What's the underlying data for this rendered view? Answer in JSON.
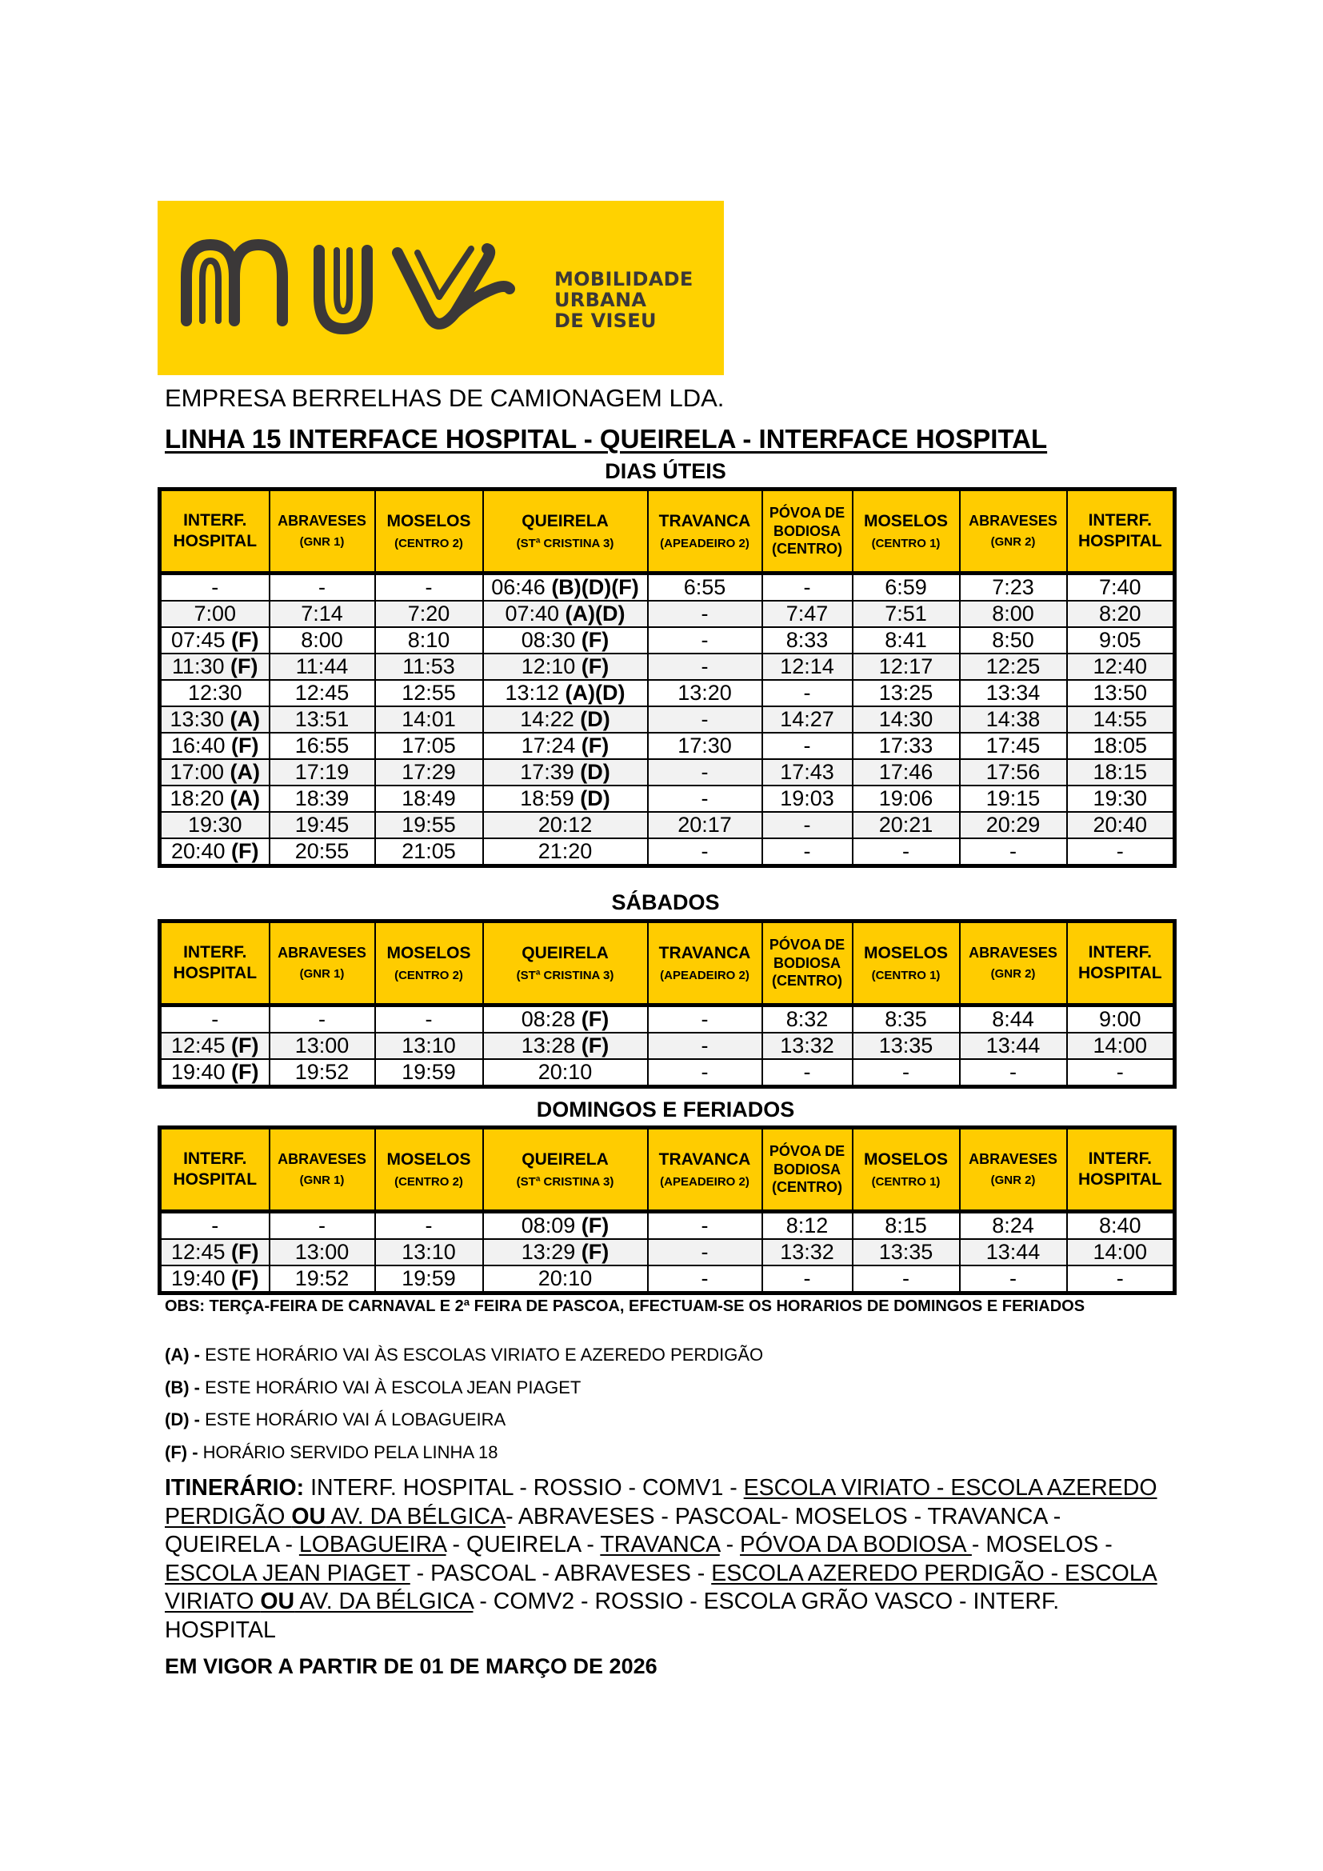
{
  "logo": {
    "brand": "MUV",
    "lines": [
      "MOBILIDADE",
      "URBANA",
      "DE VISEU"
    ],
    "colors": {
      "background": "#FFD200",
      "mark": "#3b3838"
    }
  },
  "company": "EMPRESA BERRELHAS DE CAMIONAGEM LDA.",
  "title": "LINHA  15 INTERFACE HOSPITAL - QUEIRELA - INTERFACE HOSPITAL",
  "colors": {
    "header_fill": "#FFCC00",
    "alt_row": "#f2f2f2"
  },
  "headers": [
    {
      "main": "INTERF. HOSPITAL",
      "sub": "",
      "bold": true
    },
    {
      "main": "ABRAVESES",
      "sub": "(GNR 1)",
      "bold": false,
      "small": true
    },
    {
      "main": "MOSELOS",
      "sub": "(CENTRO 2)",
      "bold": false
    },
    {
      "main": "QUEIRELA",
      "sub": "(STª CRISTINA 3)",
      "bold": true
    },
    {
      "main": "TRAVANCA",
      "sub": "(APEADEIRO 2)",
      "bold": false
    },
    {
      "main": "PÓVOA DE BODIOSA (CENTRO)",
      "sub": "",
      "bold": false,
      "small": true
    },
    {
      "main": "MOSELOS",
      "sub": "(CENTRO 1)",
      "bold": false
    },
    {
      "main": "ABRAVESES",
      "sub": "(GNR 2)",
      "bold": false,
      "small": true
    },
    {
      "main": "INTERF. HOSPITAL",
      "sub": "",
      "bold": true
    }
  ],
  "tables": [
    {
      "section": "DIAS ÚTEIS",
      "rows": [
        [
          "-",
          "-",
          "-",
          "06:46 (B)(D)(F)",
          "6:55",
          "-",
          "6:59",
          "7:23",
          "7:40"
        ],
        [
          "7:00",
          "7:14",
          "7:20",
          "07:40 (A)(D)",
          "-",
          "7:47",
          "7:51",
          "8:00",
          "8:20"
        ],
        [
          "07:45 (F)",
          "8:00",
          "8:10",
          "08:30 (F)",
          "-",
          "8:33",
          "8:41",
          "8:50",
          "9:05"
        ],
        [
          "11:30 (F)",
          "11:44",
          "11:53",
          "12:10 (F)",
          "-",
          "12:14",
          "12:17",
          "12:25",
          "12:40"
        ],
        [
          "12:30",
          "12:45",
          "12:55",
          "13:12 (A)(D)",
          "13:20",
          "-",
          "13:25",
          "13:34",
          "13:50"
        ],
        [
          "13:30 (A)",
          "13:51",
          "14:01",
          "14:22 (D)",
          "-",
          "14:27",
          "14:30",
          "14:38",
          "14:55"
        ],
        [
          "16:40 (F)",
          "16:55",
          "17:05",
          "17:24 (F)",
          "17:30",
          "-",
          "17:33",
          "17:45",
          "18:05"
        ],
        [
          "17:00 (A)",
          "17:19",
          "17:29",
          "17:39 (D)",
          "-",
          "17:43",
          "17:46",
          "17:56",
          "18:15"
        ],
        [
          "18:20 (A)",
          "18:39",
          "18:49",
          "18:59 (D)",
          "-",
          "19:03",
          "19:06",
          "19:15",
          "19:30"
        ],
        [
          "19:30",
          "19:45",
          "19:55",
          "20:12",
          "20:17",
          "-",
          "20:21",
          "20:29",
          "20:40"
        ],
        [
          "20:40 (F)",
          "20:55",
          "21:05",
          "21:20",
          "-",
          "-",
          "-",
          "-",
          "-"
        ]
      ]
    },
    {
      "section": "SÁBADOS",
      "rows": [
        [
          "-",
          "-",
          "-",
          "08:28 (F)",
          "-",
          "8:32",
          "8:35",
          "8:44",
          "9:00"
        ],
        [
          "12:45 (F)",
          "13:00",
          "13:10",
          "13:28 (F)",
          "-",
          "13:32",
          "13:35",
          "13:44",
          "14:00"
        ],
        [
          "19:40 (F)",
          "19:52",
          "19:59",
          "20:10",
          "-",
          "-",
          "-",
          "-",
          "-"
        ]
      ]
    },
    {
      "section": "DOMINGOS E FERIADOS",
      "rows": [
        [
          "-",
          "-",
          "-",
          "08:09 (F)",
          "-",
          "8:12",
          "8:15",
          "8:24",
          "8:40"
        ],
        [
          "12:45 (F)",
          "13:00",
          "13:10",
          "13:29 (F)",
          "-",
          "13:32",
          "13:35",
          "13:44",
          "14:00"
        ],
        [
          "19:40 (F)",
          "19:52",
          "19:59",
          "20:10",
          "-",
          "-",
          "-",
          "-",
          "-"
        ]
      ]
    }
  ],
  "obs": "OBS: TERÇA-FEIRA DE CARNAVAL E 2ª FEIRA DE PASCOA, EFECTUAM-SE OS HORARIOS DE DOMINGOS E FERIADOS",
  "notes": [
    {
      "key": "(A) -",
      "text": " ESTE HORÁRIO VAI ÀS ESCOLAS VIRIATO E AZEREDO PERDIGÃO"
    },
    {
      "key": "(B) -",
      "text": " ESTE HORÁRIO VAI À ESCOLA JEAN PIAGET"
    },
    {
      "key": "(D) -",
      "text": " ESTE HORÁRIO VAI Á LOBAGUEIRA"
    },
    {
      "key": "(F) -",
      "text": " HORÁRIO SERVIDO PELA LINHA 18"
    }
  ],
  "itinerary": [
    {
      "t": "ITINERÁRIO:",
      "b": true
    },
    {
      "t": " INTERF. HOSPITAL - ROSSIO - COMV1 - "
    },
    {
      "t": "ESCOLA VIRIATO - ESCOLA AZEREDO PERDIGÃO ",
      "u": true
    },
    {
      "t": "OU",
      "u": true,
      "b": true
    },
    {
      "t": " AV. DA BÉLGICA",
      "u": true
    },
    {
      "t": "- ABRAVESES - PASCOAL- MOSELOS - TRAVANCA - QUEIRELA - "
    },
    {
      "t": "LOBAGUEIRA",
      "u": true
    },
    {
      "t": " - QUEIRELA - "
    },
    {
      "t": "TRAVANCA",
      "u": true
    },
    {
      "t": " - "
    },
    {
      "t": "PÓVOA DA BODIOSA ",
      "u": true
    },
    {
      "t": "- MOSELOS - "
    },
    {
      "t": "ESCOLA JEAN PIAGET",
      "u": true
    },
    {
      "t": " - PASCOAL - ABRAVESES - "
    },
    {
      "t": " ESCOLA AZEREDO PERDIGÃO - ESCOLA VIRIATO ",
      "u": true
    },
    {
      "t": "OU",
      "u": true,
      "b": true
    },
    {
      "t": " AV. DA BÉLGICA",
      "u": true
    },
    {
      "t": " - COMV2 - ROSSIO - ESCOLA GRÃO VASCO - INTERF. HOSPITAL"
    }
  ],
  "validity": "EM VIGOR A PARTIR DE 01 DE MARÇO DE 2026"
}
